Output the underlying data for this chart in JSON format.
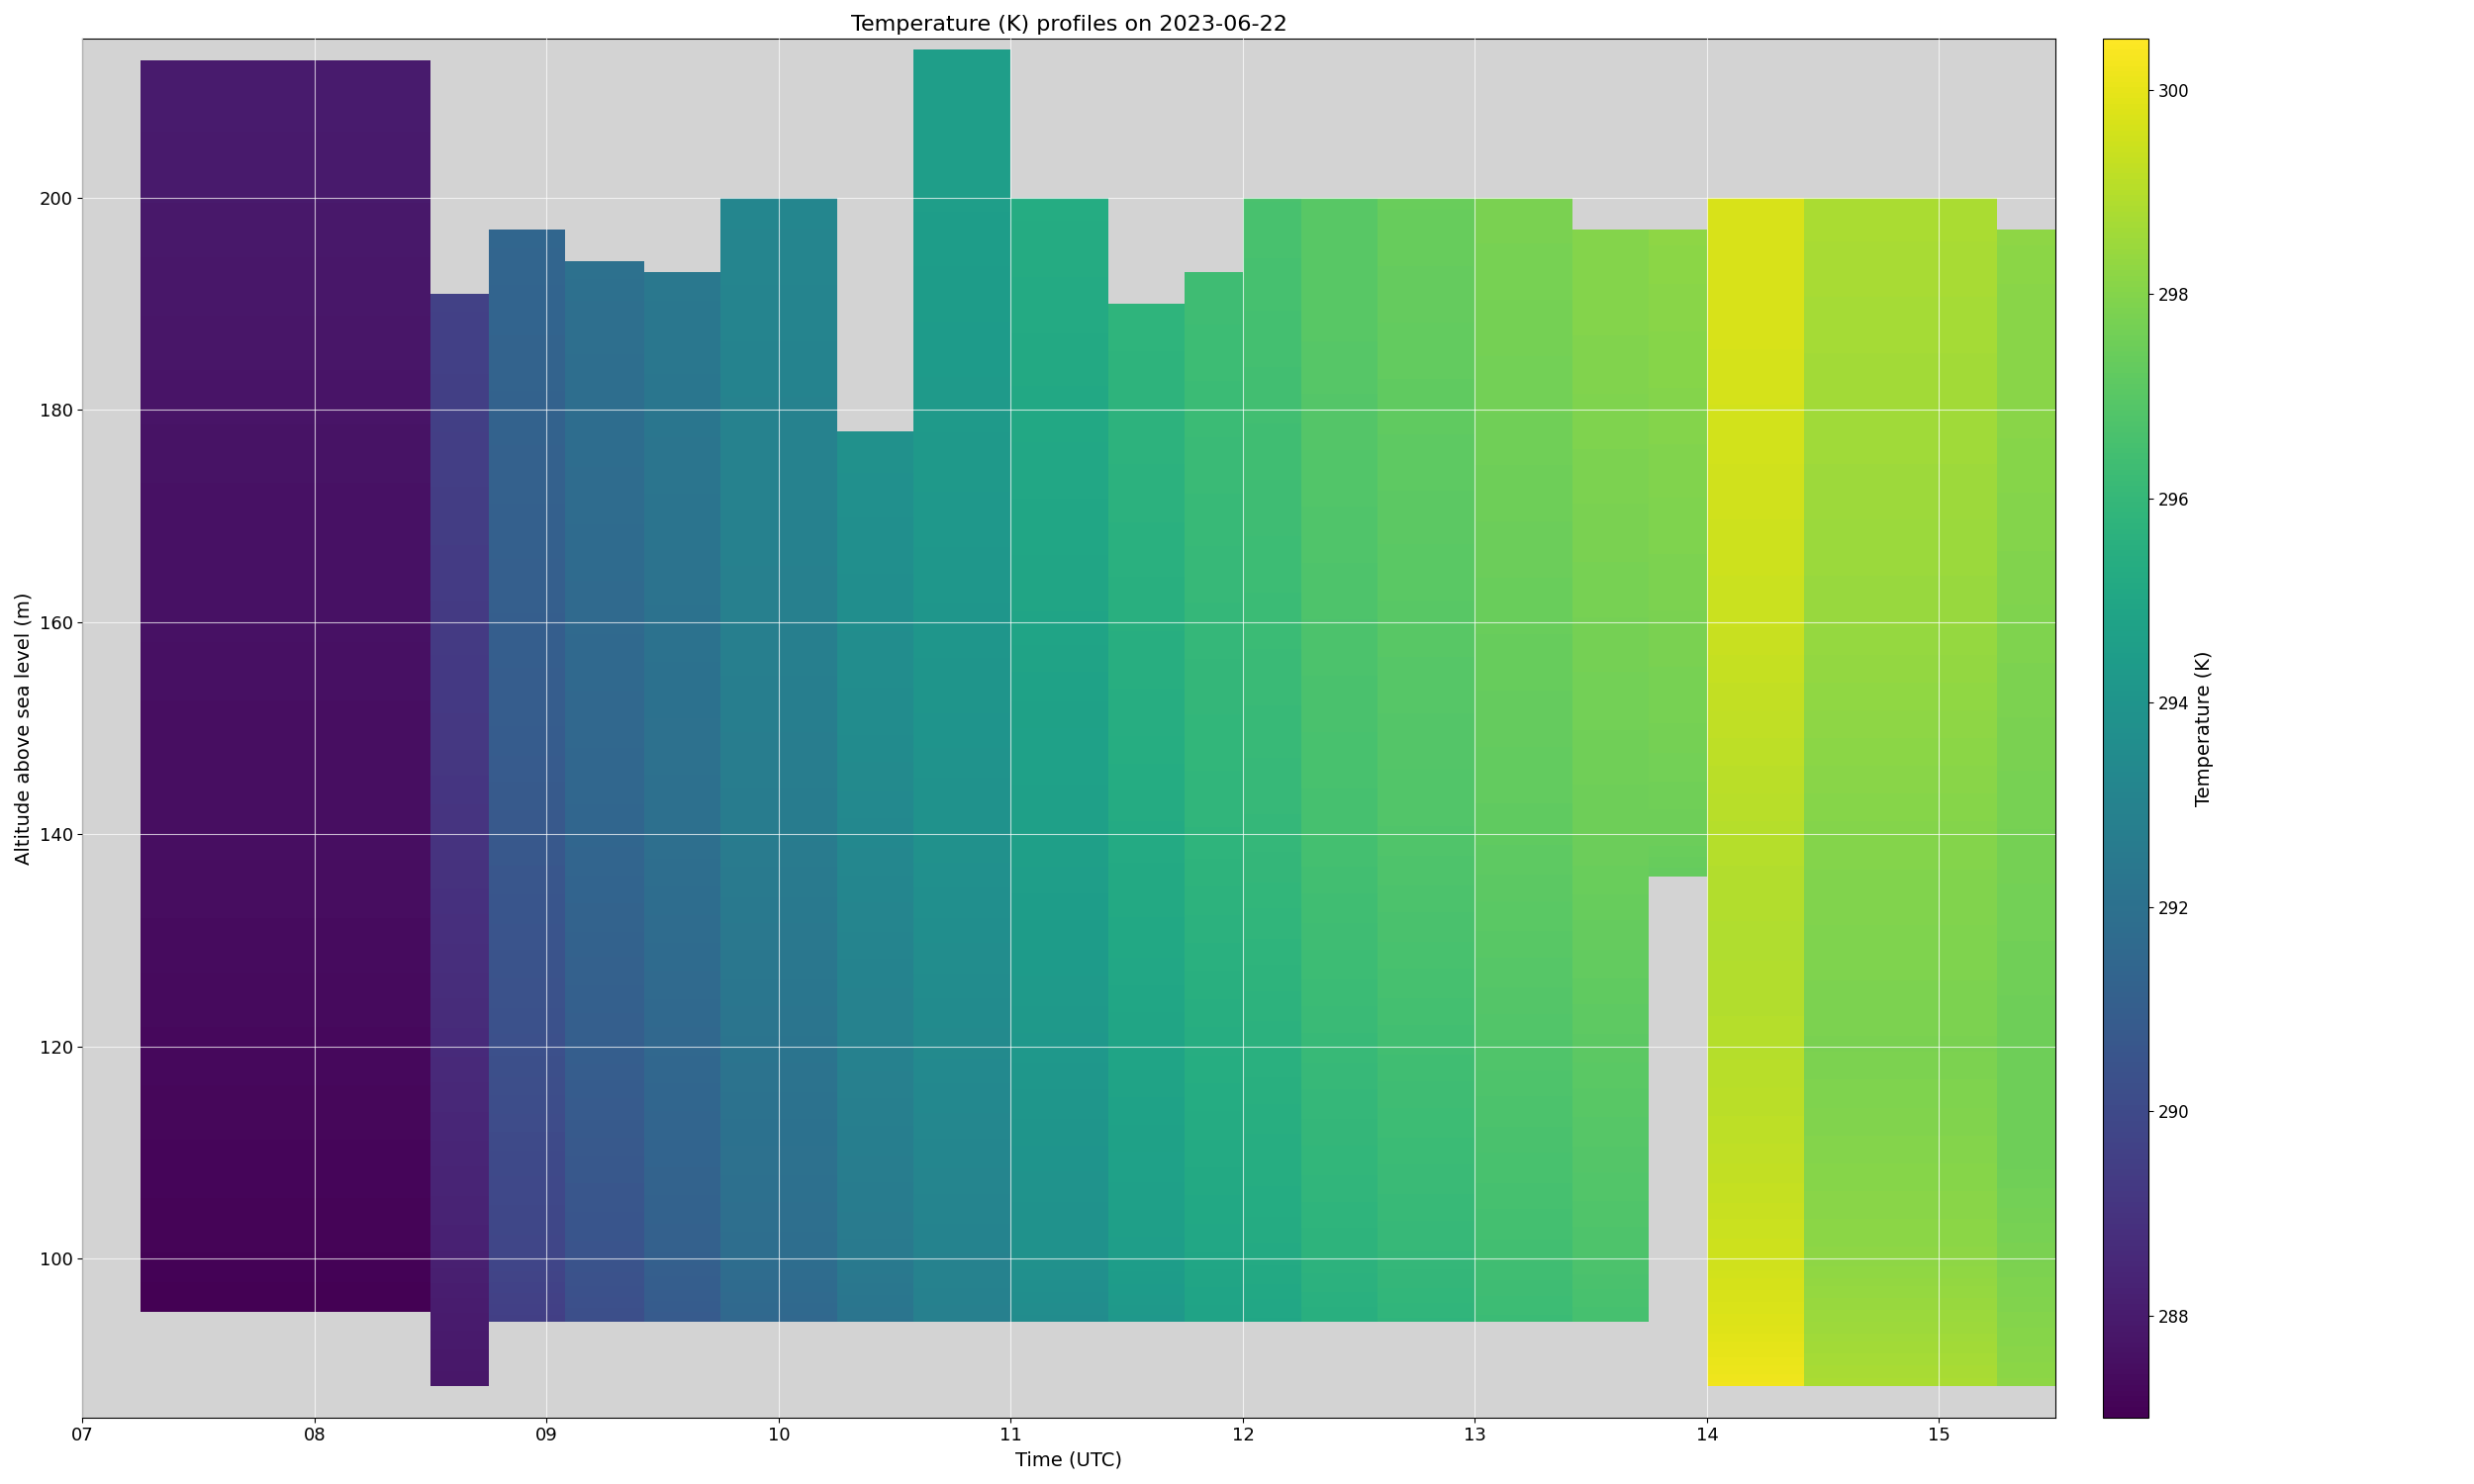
{
  "title": "Temperature (K) profiles on 2023-06-22",
  "xlabel": "Time (UTC)",
  "ylabel": "Altitude above sea level (m)",
  "colorbar_label": "Temperature (K)",
  "cmap": "viridis",
  "vmin": 287.0,
  "vmax": 300.5,
  "background_color": "#d3d3d3",
  "xlim": [
    7.0,
    15.5
  ],
  "ylim": [
    85,
    215
  ],
  "xticks": [
    7,
    8,
    9,
    10,
    11,
    12,
    13,
    14,
    15
  ],
  "xticklabels": [
    "07",
    "08",
    "09",
    "10",
    "11",
    "12",
    "13",
    "14",
    "15"
  ],
  "yticks": [
    100,
    120,
    140,
    160,
    180,
    200
  ],
  "gradient_profiles": [
    {
      "time_start": 7.25,
      "time_end": 8.5,
      "alts": [
        95,
        100,
        110,
        120,
        130,
        140,
        150,
        160,
        170,
        180,
        190,
        200,
        213
      ],
      "temps": [
        287.0,
        287.1,
        287.2,
        287.3,
        287.4,
        287.5,
        287.5,
        287.6,
        287.6,
        287.7,
        287.8,
        287.9,
        288.0
      ]
    },
    {
      "time_start": 8.5,
      "time_end": 8.75,
      "alts": [
        88,
        95,
        100,
        110,
        120,
        130,
        140,
        150,
        160,
        170,
        180,
        191
      ],
      "temps": [
        287.8,
        288.0,
        288.2,
        288.4,
        288.6,
        288.8,
        289.0,
        289.2,
        289.3,
        289.4,
        289.5,
        289.6
      ]
    },
    {
      "time_start": 8.75,
      "time_end": 9.08,
      "alts": [
        94,
        100,
        110,
        120,
        130,
        140,
        150,
        160,
        170,
        180,
        190,
        197
      ],
      "temps": [
        289.5,
        289.8,
        290.0,
        290.3,
        290.5,
        290.7,
        290.9,
        291.0,
        291.1,
        291.2,
        291.3,
        291.4
      ]
    },
    {
      "time_start": 9.08,
      "time_end": 9.42,
      "alts": [
        94,
        100,
        110,
        120,
        130,
        140,
        150,
        160,
        170,
        180,
        190,
        194
      ],
      "temps": [
        290.2,
        290.5,
        290.7,
        291.0,
        291.2,
        291.4,
        291.5,
        291.6,
        291.7,
        291.8,
        291.9,
        292.0
      ]
    },
    {
      "time_start": 9.42,
      "time_end": 9.75,
      "alts": [
        94,
        100,
        110,
        120,
        130,
        140,
        150,
        160,
        170,
        180,
        193
      ],
      "temps": [
        290.8,
        291.1,
        291.3,
        291.5,
        291.7,
        291.9,
        292.0,
        292.1,
        292.2,
        292.3,
        292.4
      ]
    },
    {
      "time_start": 9.75,
      "time_end": 10.25,
      "alts": [
        94,
        100,
        110,
        120,
        130,
        140,
        150,
        160,
        170,
        180,
        190,
        200
      ],
      "temps": [
        291.5,
        291.8,
        292.0,
        292.2,
        292.4,
        292.6,
        292.7,
        292.8,
        292.9,
        293.0,
        293.1,
        293.2
      ]
    },
    {
      "time_start": 10.25,
      "time_end": 10.58,
      "alts": [
        94,
        100,
        110,
        120,
        130,
        140,
        150,
        160,
        170,
        178
      ],
      "temps": [
        292.2,
        292.5,
        292.7,
        292.9,
        293.1,
        293.3,
        293.5,
        293.6,
        293.7,
        293.8
      ]
    },
    {
      "time_start": 10.58,
      "time_end": 11.0,
      "alts": [
        94,
        100,
        110,
        120,
        130,
        140,
        150,
        160,
        170,
        180,
        190,
        200,
        214
      ],
      "temps": [
        292.8,
        293.0,
        293.2,
        293.4,
        293.6,
        293.8,
        294.0,
        294.1,
        294.2,
        294.3,
        294.4,
        294.5,
        294.5
      ]
    },
    {
      "time_start": 11.0,
      "time_end": 11.42,
      "alts": [
        94,
        100,
        110,
        120,
        130,
        140,
        150,
        160,
        170,
        180,
        190,
        200
      ],
      "temps": [
        293.5,
        293.8,
        294.0,
        294.2,
        294.4,
        294.6,
        294.7,
        294.9,
        295.0,
        295.1,
        295.2,
        295.3
      ]
    },
    {
      "time_start": 11.42,
      "time_end": 11.75,
      "alts": [
        94,
        100,
        110,
        120,
        130,
        140,
        150,
        160,
        170,
        180,
        190
      ],
      "temps": [
        294.2,
        294.5,
        294.7,
        294.9,
        295.1,
        295.2,
        295.4,
        295.5,
        295.6,
        295.7,
        295.8
      ]
    },
    {
      "time_start": 11.75,
      "time_end": 12.0,
      "alts": [
        94,
        100,
        110,
        120,
        130,
        140,
        150,
        160,
        170,
        180,
        190,
        193
      ],
      "temps": [
        294.8,
        295.0,
        295.2,
        295.4,
        295.6,
        295.8,
        295.9,
        296.0,
        296.1,
        296.2,
        296.3,
        296.3
      ]
    },
    {
      "time_start": 12.0,
      "time_end": 12.25,
      "alts": [
        94,
        100,
        110,
        120,
        130,
        140,
        150,
        160,
        170,
        180,
        190,
        200
      ],
      "temps": [
        295.0,
        295.2,
        295.4,
        295.6,
        295.8,
        296.0,
        296.1,
        296.2,
        296.3,
        296.4,
        296.5,
        296.6
      ]
    },
    {
      "time_start": 12.25,
      "time_end": 12.58,
      "alts": [
        94,
        100,
        110,
        120,
        130,
        140,
        150,
        160,
        170,
        180,
        190,
        200
      ],
      "temps": [
        295.5,
        295.7,
        295.9,
        296.1,
        296.3,
        296.5,
        296.6,
        296.7,
        296.8,
        296.9,
        297.0,
        297.0
      ]
    },
    {
      "time_start": 12.58,
      "time_end": 13.0,
      "alts": [
        94,
        100,
        110,
        120,
        130,
        140,
        150,
        160,
        170,
        180,
        190,
        200
      ],
      "temps": [
        295.8,
        296.0,
        296.2,
        296.4,
        296.6,
        296.8,
        296.9,
        297.0,
        297.1,
        297.2,
        297.3,
        297.4
      ]
    },
    {
      "time_start": 13.0,
      "time_end": 13.42,
      "alts": [
        94,
        100,
        110,
        120,
        130,
        140,
        150,
        160,
        170,
        180,
        190,
        200
      ],
      "temps": [
        296.2,
        296.4,
        296.6,
        296.8,
        297.0,
        297.2,
        297.3,
        297.4,
        297.5,
        297.6,
        297.7,
        297.8
      ]
    },
    {
      "time_start": 13.42,
      "time_end": 13.75,
      "alts": [
        94,
        100,
        110,
        120,
        130,
        140,
        150,
        160,
        170,
        180,
        190,
        197
      ],
      "temps": [
        296.5,
        296.7,
        296.9,
        297.1,
        297.3,
        297.5,
        297.6,
        297.7,
        297.8,
        297.9,
        298.0,
        298.0
      ]
    },
    {
      "time_start": 13.75,
      "time_end": 14.0,
      "alts": [
        136,
        140,
        150,
        160,
        170,
        180,
        190,
        197
      ],
      "temps": [
        297.3,
        297.5,
        297.7,
        297.8,
        297.9,
        298.0,
        298.1,
        298.2
      ]
    },
    {
      "time_start": 14.0,
      "time_end": 14.42,
      "alts": [
        88,
        94,
        100,
        110,
        120,
        130,
        140,
        150,
        160,
        170,
        180,
        190,
        200
      ],
      "temps": [
        300.2,
        299.8,
        299.5,
        299.2,
        299.0,
        298.9,
        299.0,
        299.2,
        299.4,
        299.5,
        299.6,
        299.7,
        299.7
      ]
    },
    {
      "time_start": 14.42,
      "time_end": 15.25,
      "alts": [
        88,
        94,
        100,
        110,
        120,
        130,
        140,
        150,
        160,
        170,
        180,
        190,
        200
      ],
      "temps": [
        298.8,
        298.5,
        298.2,
        298.0,
        297.8,
        297.9,
        298.0,
        298.2,
        298.4,
        298.5,
        298.6,
        298.7,
        298.8
      ]
    },
    {
      "time_start": 15.25,
      "time_end": 15.58,
      "alts": [
        88,
        94,
        100,
        110,
        120,
        130,
        140,
        150,
        160,
        170,
        180,
        190,
        197
      ],
      "temps": [
        298.2,
        298.0,
        297.8,
        297.5,
        297.5,
        297.6,
        297.7,
        297.8,
        297.9,
        298.0,
        298.1,
        298.1,
        298.2
      ]
    }
  ]
}
